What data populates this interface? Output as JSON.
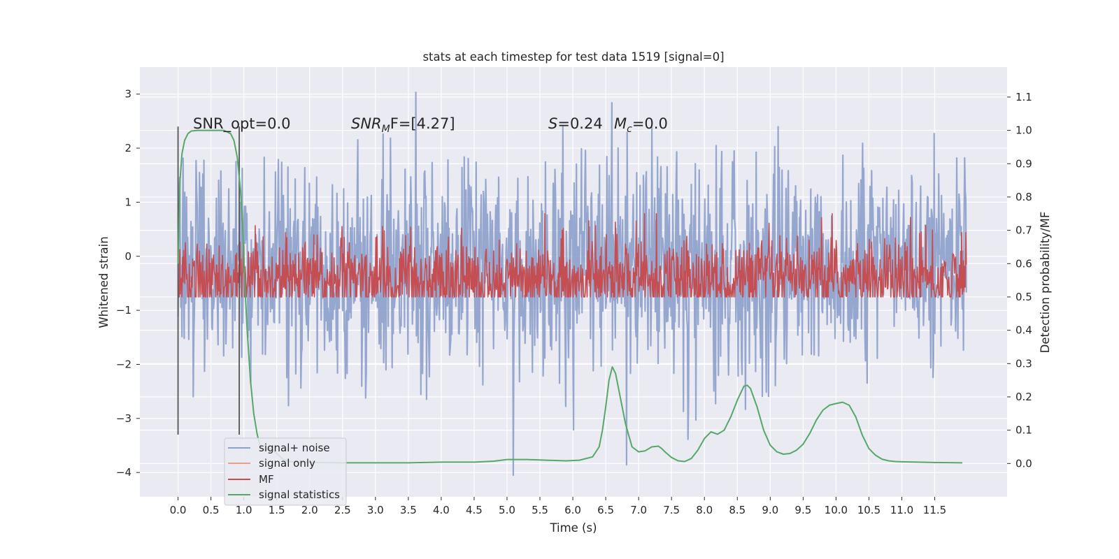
{
  "chart_data": {
    "type": "line",
    "title": "stats at each timestep for test data 1519 [signal=0]",
    "xlabel": "Time (s)",
    "ylabel": "Whitened strain",
    "y2label": "Detection probability/MF",
    "xlim": [
      -0.58,
      12.6
    ],
    "ylim": [
      -4.45,
      3.5
    ],
    "y2lim": [
      -0.1,
      1.19
    ],
    "xticks": [
      "0.0",
      "0.5",
      "1.0",
      "1.5",
      "2.0",
      "2.5",
      "3.0",
      "3.5",
      "4.0",
      "4.5",
      "5.0",
      "5.5",
      "6.0",
      "6.5",
      "7.0",
      "7.5",
      "8.0",
      "8.5",
      "9.0",
      "9.5",
      "10.0",
      "10.5",
      "11.0",
      "11.5"
    ],
    "yticks": [
      "3",
      "2",
      "1",
      "0",
      "−1",
      "−2",
      "−3",
      "−4"
    ],
    "y2ticks": [
      "1.1",
      "1.0",
      "0.9",
      "0.8",
      "0.7",
      "0.6",
      "0.5",
      "0.4",
      "0.3",
      "0.2",
      "0.1",
      "0.0"
    ],
    "grid": true,
    "legend_position": "lower-left",
    "colors": {
      "background": "#eaeaf2",
      "grid": "#ffffff",
      "noise": "#8da0cb",
      "signal_only": "#e9a088",
      "mf": "#c44e52",
      "stat": "#55a868",
      "window_line": "#555555"
    },
    "annotations": {
      "snr_opt": "SNR_opt=0.0",
      "snr_mf_prefix": "SNR",
      "snr_mf_sub": "M",
      "snr_mf_rest": "F=[4.27]",
      "s_label": "S",
      "s_value": "=0.24",
      "mc_label": "M",
      "mc_sub": "c",
      "mc_value": "=0.0"
    },
    "window_lines_x": [
      0.0,
      0.93
    ],
    "series": [
      {
        "name": "signal+ noise"
      },
      {
        "name": "signal only"
      },
      {
        "name": "MF"
      },
      {
        "name": "signal statistics",
        "x": [
          0.0,
          0.03,
          0.06,
          0.1,
          0.15,
          0.2,
          0.3,
          0.4,
          0.5,
          0.6,
          0.7,
          0.8,
          0.85,
          0.9,
          0.95,
          0.98,
          1.0,
          1.02,
          1.05,
          1.1,
          1.15,
          1.2,
          1.25,
          1.3,
          1.4,
          1.5,
          1.6,
          1.7,
          1.8,
          2.0,
          2.5,
          3.0,
          3.5,
          4.0,
          4.5,
          4.8,
          5.0,
          5.3,
          5.6,
          5.9,
          6.1,
          6.3,
          6.4,
          6.45,
          6.5,
          6.55,
          6.6,
          6.65,
          6.7,
          6.8,
          6.9,
          7.0,
          7.1,
          7.2,
          7.3,
          7.35,
          7.4,
          7.5,
          7.6,
          7.7,
          7.8,
          7.9,
          8.0,
          8.1,
          8.2,
          8.3,
          8.4,
          8.5,
          8.6,
          8.65,
          8.7,
          8.8,
          8.9,
          9.0,
          9.1,
          9.2,
          9.3,
          9.4,
          9.5,
          9.6,
          9.7,
          9.8,
          9.9,
          10.0,
          10.1,
          10.2,
          10.3,
          10.4,
          10.5,
          10.6,
          10.7,
          10.8,
          10.9,
          11.0,
          11.5,
          11.92
        ],
        "y": [
          0.6,
          0.85,
          0.93,
          0.97,
          0.99,
          0.998,
          1.0,
          1.0,
          1.0,
          1.0,
          1.0,
          0.99,
          0.97,
          0.92,
          0.82,
          0.72,
          0.62,
          0.52,
          0.4,
          0.25,
          0.15,
          0.09,
          0.05,
          0.04,
          0.045,
          0.03,
          0.012,
          0.006,
          0.004,
          0.003,
          0.002,
          0.002,
          0.002,
          0.004,
          0.004,
          0.007,
          0.012,
          0.012,
          0.01,
          0.008,
          0.01,
          0.02,
          0.05,
          0.1,
          0.17,
          0.25,
          0.29,
          0.27,
          0.22,
          0.12,
          0.05,
          0.035,
          0.038,
          0.05,
          0.052,
          0.045,
          0.035,
          0.018,
          0.008,
          0.006,
          0.015,
          0.04,
          0.075,
          0.095,
          0.088,
          0.1,
          0.14,
          0.19,
          0.232,
          0.235,
          0.225,
          0.17,
          0.1,
          0.055,
          0.035,
          0.028,
          0.03,
          0.04,
          0.058,
          0.09,
          0.13,
          0.16,
          0.175,
          0.18,
          0.184,
          0.175,
          0.14,
          0.085,
          0.045,
          0.025,
          0.013,
          0.008,
          0.006,
          0.005,
          0.003,
          0.002
        ]
      }
    ]
  }
}
